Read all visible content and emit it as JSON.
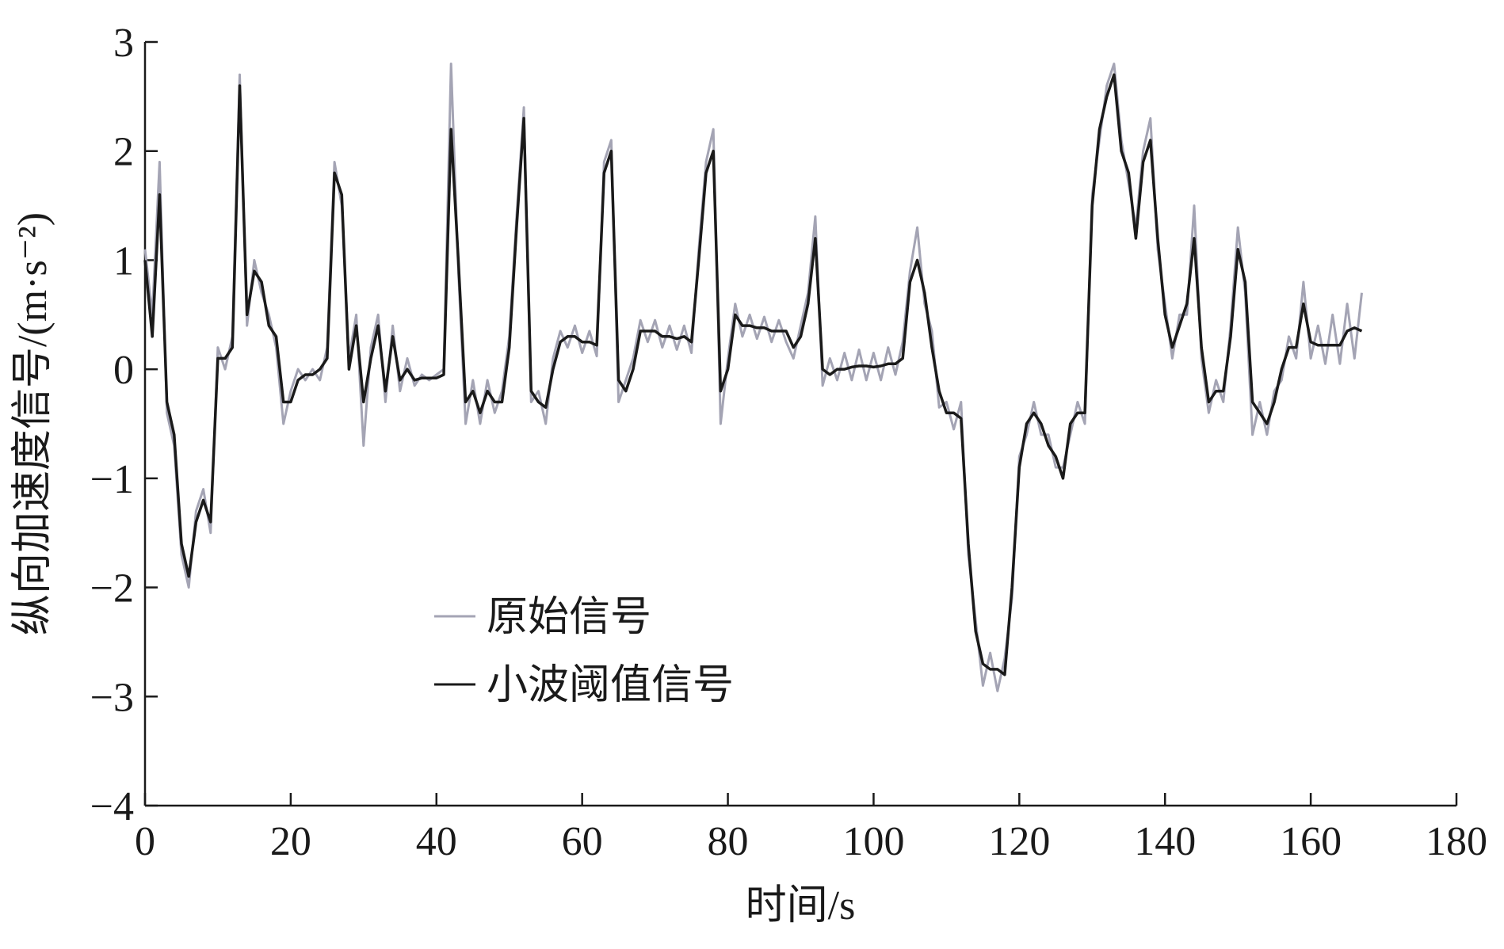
{
  "chart_data": {
    "type": "line",
    "xlabel": "时间/s",
    "ylabel": "纵向加速度信号/(m·s⁻²)",
    "xlim": [
      0,
      180
    ],
    "xticks": [
      0,
      20,
      40,
      60,
      80,
      100,
      120,
      140,
      160,
      180
    ],
    "ylim": [
      -4,
      3
    ],
    "yticks": [
      {
        "value": -4,
        "label": "−4"
      },
      {
        "value": -3,
        "label": "−3"
      },
      {
        "value": -2,
        "label": "−2"
      },
      {
        "value": -1,
        "label": "−1"
      },
      0,
      1,
      2,
      3
    ],
    "x": [
      0,
      1,
      2,
      3,
      4,
      5,
      6,
      7,
      8,
      9,
      10,
      11,
      12,
      13,
      14,
      15,
      16,
      17,
      18,
      19,
      20,
      21,
      22,
      23,
      24,
      25,
      26,
      27,
      28,
      29,
      30,
      31,
      32,
      33,
      34,
      35,
      36,
      37,
      38,
      39,
      40,
      41,
      42,
      43,
      44,
      45,
      46,
      47,
      48,
      49,
      50,
      51,
      52,
      53,
      54,
      55,
      56,
      57,
      58,
      59,
      60,
      61,
      62,
      63,
      64,
      65,
      66,
      67,
      68,
      69,
      70,
      71,
      72,
      73,
      74,
      75,
      76,
      77,
      78,
      79,
      80,
      81,
      82,
      83,
      84,
      85,
      86,
      87,
      88,
      89,
      90,
      91,
      92,
      93,
      94,
      95,
      96,
      97,
      98,
      99,
      100,
      101,
      102,
      103,
      104,
      105,
      106,
      107,
      108,
      109,
      110,
      111,
      112,
      113,
      114,
      115,
      116,
      117,
      118,
      119,
      120,
      121,
      122,
      123,
      124,
      125,
      126,
      127,
      128,
      129,
      130,
      131,
      132,
      133,
      134,
      135,
      136,
      137,
      138,
      139,
      140,
      141,
      142,
      143,
      144,
      145,
      146,
      147,
      148,
      149,
      150,
      151,
      152,
      153,
      154,
      155,
      156,
      157,
      158,
      159,
      160,
      161,
      162,
      163,
      164,
      165,
      166,
      167
    ],
    "series": [
      {
        "name": "原始信号",
        "color": "#a4a4b4",
        "values": [
          1.1,
          0.5,
          1.9,
          -0.4,
          -0.7,
          -1.7,
          -2.0,
          -1.3,
          -1.1,
          -1.5,
          0.2,
          0.0,
          0.3,
          2.7,
          0.4,
          1.0,
          0.7,
          0.5,
          0.2,
          -0.5,
          -0.2,
          0.0,
          -0.1,
          0.0,
          -0.1,
          0.2,
          1.9,
          1.5,
          0.1,
          0.5,
          -0.7,
          0.2,
          0.5,
          -0.3,
          0.4,
          -0.2,
          0.1,
          -0.15,
          -0.05,
          -0.1,
          -0.05,
          0.0,
          2.8,
          0.9,
          -0.5,
          -0.1,
          -0.5,
          -0.1,
          -0.4,
          -0.2,
          0.3,
          1.4,
          2.4,
          -0.3,
          -0.2,
          -0.5,
          0.1,
          0.35,
          0.2,
          0.4,
          0.15,
          0.35,
          0.12,
          1.9,
          2.1,
          -0.3,
          -0.1,
          0.1,
          0.45,
          0.25,
          0.45,
          0.2,
          0.4,
          0.18,
          0.4,
          0.15,
          1.1,
          1.9,
          2.2,
          -0.5,
          0.1,
          0.6,
          0.3,
          0.5,
          0.28,
          0.48,
          0.25,
          0.45,
          0.25,
          0.1,
          0.4,
          0.7,
          1.4,
          -0.15,
          0.1,
          -0.1,
          0.15,
          -0.1,
          0.18,
          -0.1,
          0.15,
          -0.1,
          0.2,
          -0.05,
          0.25,
          0.9,
          1.3,
          0.6,
          0.35,
          -0.35,
          -0.3,
          -0.55,
          -0.3,
          -1.7,
          -2.3,
          -2.9,
          -2.6,
          -2.95,
          -2.65,
          -2.1,
          -0.8,
          -0.6,
          -0.3,
          -0.6,
          -0.6,
          -0.9,
          -0.9,
          -0.6,
          -0.3,
          -0.5,
          1.6,
          2.1,
          2.6,
          2.8,
          2.1,
          1.7,
          1.3,
          2.0,
          2.3,
          1.1,
          0.6,
          0.1,
          0.5,
          0.5,
          1.5,
          0.1,
          -0.4,
          -0.1,
          -0.3,
          0.4,
          1.3,
          0.7,
          -0.6,
          -0.3,
          -0.6,
          -0.2,
          -0.1,
          0.3,
          0.1,
          0.8,
          0.1,
          0.4,
          0.05,
          0.5,
          0.05,
          0.6,
          0.1,
          0.7
        ]
      },
      {
        "name": "小波阈值信号",
        "color": "#1a1a1a",
        "values": [
          1.0,
          0.3,
          1.6,
          -0.3,
          -0.6,
          -1.6,
          -1.9,
          -1.4,
          -1.2,
          -1.4,
          0.1,
          0.1,
          0.2,
          2.6,
          0.5,
          0.9,
          0.8,
          0.4,
          0.3,
          -0.3,
          -0.3,
          -0.1,
          -0.05,
          -0.05,
          0.0,
          0.1,
          1.8,
          1.6,
          0.0,
          0.4,
          -0.3,
          0.1,
          0.4,
          -0.2,
          0.3,
          -0.1,
          0.0,
          -0.1,
          -0.08,
          -0.08,
          -0.08,
          -0.05,
          2.2,
          1.0,
          -0.3,
          -0.2,
          -0.4,
          -0.2,
          -0.3,
          -0.3,
          0.2,
          1.3,
          2.3,
          -0.2,
          -0.3,
          -0.35,
          0.0,
          0.25,
          0.3,
          0.3,
          0.25,
          0.25,
          0.22,
          1.8,
          2.0,
          -0.1,
          -0.2,
          0.0,
          0.35,
          0.35,
          0.35,
          0.3,
          0.3,
          0.28,
          0.3,
          0.25,
          1.0,
          1.8,
          2.0,
          -0.2,
          0.0,
          0.5,
          0.4,
          0.4,
          0.38,
          0.38,
          0.35,
          0.35,
          0.35,
          0.2,
          0.3,
          0.6,
          1.2,
          0.0,
          -0.05,
          0.0,
          0.0,
          0.02,
          0.03,
          0.03,
          0.02,
          0.03,
          0.05,
          0.05,
          0.1,
          0.8,
          1.0,
          0.7,
          0.2,
          -0.2,
          -0.4,
          -0.4,
          -0.45,
          -1.6,
          -2.4,
          -2.7,
          -2.75,
          -2.75,
          -2.8,
          -2.0,
          -0.9,
          -0.5,
          -0.4,
          -0.5,
          -0.7,
          -0.8,
          -1.0,
          -0.5,
          -0.4,
          -0.4,
          1.5,
          2.2,
          2.5,
          2.7,
          2.0,
          1.8,
          1.2,
          1.9,
          2.1,
          1.2,
          0.5,
          0.2,
          0.4,
          0.6,
          1.2,
          0.2,
          -0.3,
          -0.2,
          -0.2,
          0.3,
          1.1,
          0.8,
          -0.3,
          -0.4,
          -0.5,
          -0.3,
          0.0,
          0.2,
          0.2,
          0.6,
          0.25,
          0.22,
          0.22,
          0.22,
          0.22,
          0.35,
          0.38,
          0.35
        ]
      }
    ]
  }
}
